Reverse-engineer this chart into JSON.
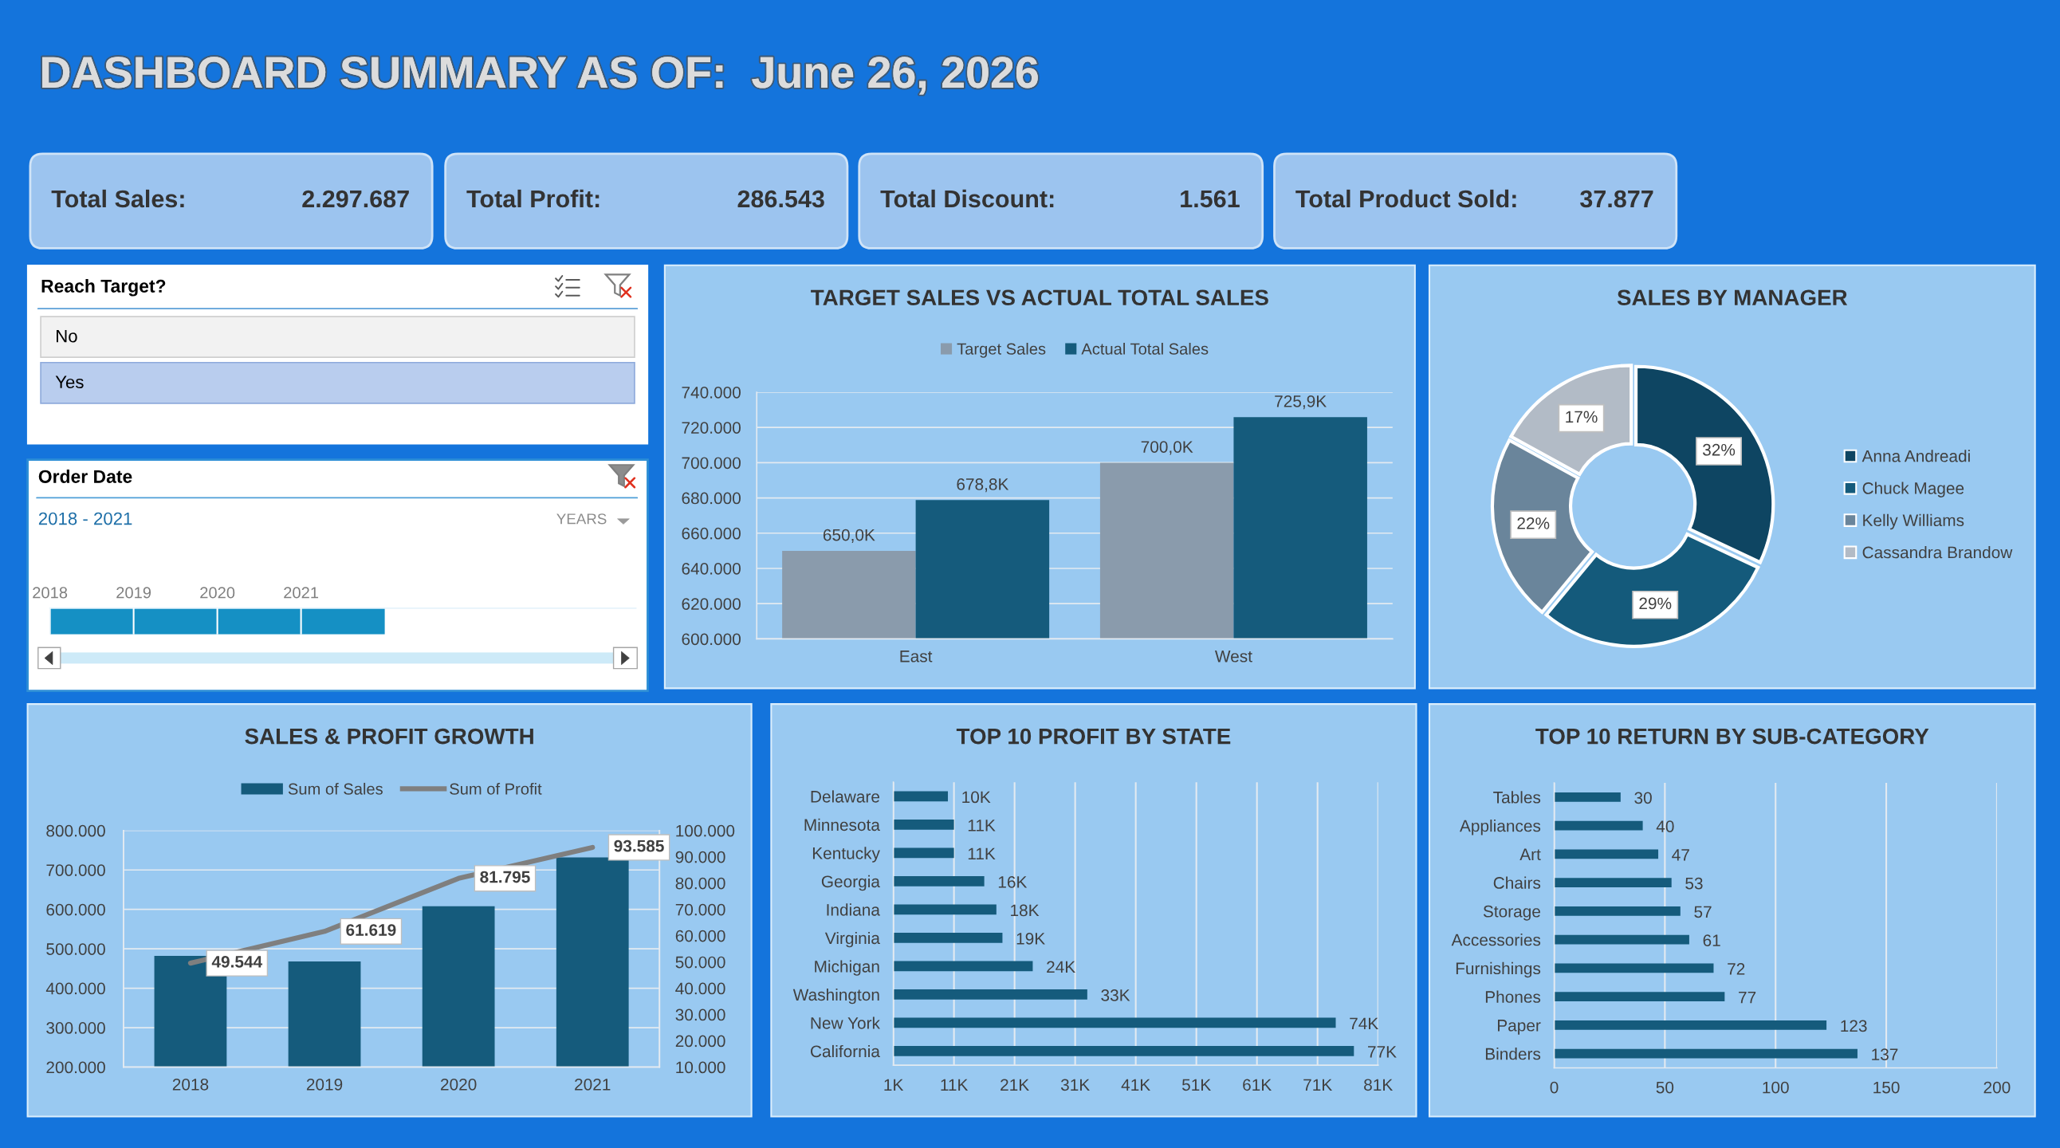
{
  "chart_data": [
    {
      "type": "other",
      "title": "DASHBOARD SUMMARY AS OF:  June 26, 2026"
    },
    {
      "type": "other",
      "title": "Total Sales:",
      "annotations": [
        "2.297.687"
      ]
    },
    {
      "type": "other",
      "title": "Total Profit:",
      "annotations": [
        "286.543"
      ]
    },
    {
      "type": "other",
      "title": "Total Discount:",
      "annotations": [
        "1.561"
      ]
    },
    {
      "type": "other",
      "title": "Total Product Sold:",
      "annotations": [
        "37.877"
      ]
    },
    {
      "type": "other",
      "title": "Reach Target?",
      "annotations": [
        "No",
        "Yes"
      ]
    },
    {
      "type": "bar",
      "orientation": "horizontal",
      "title": "Order Date",
      "annotations": [
        "2018 - 2021",
        "YEARS"
      ],
      "categories": [
        null
      ],
      "base": [
        2018
      ],
      "values": [
        4
      ],
      "color": "#1590c4",
      "xlim": [
        2018,
        2025
      ],
      "xticks": [
        2018,
        2019,
        2020,
        2021
      ],
      "grid": "x"
    },
    {
      "type": "bar",
      "title": "TARGET SALES VS ACTUAL TOTAL SALES",
      "categories": [
        "East",
        "West"
      ],
      "series": [
        {
          "name": "Target Sales",
          "color": "#8a9bac",
          "values": [
            650000,
            700000
          ],
          "value_labels": [
            "650,0K",
            "700,0K"
          ]
        },
        {
          "name": "Actual Total Sales",
          "color": "#155b7c",
          "values": [
            678800,
            725900
          ],
          "value_labels": [
            "678,8K",
            "725,9K"
          ]
        }
      ],
      "ylim": [
        600000,
        740000
      ],
      "yticks": [
        {
          "value": 600000,
          "label": "600.000"
        },
        {
          "value": 620000,
          "label": "620.000"
        },
        {
          "value": 640000,
          "label": "640.000"
        },
        {
          "value": 660000,
          "label": "660.000"
        },
        {
          "value": 680000,
          "label": "680.000"
        },
        {
          "value": 700000,
          "label": "700.000"
        },
        {
          "value": 720000,
          "label": "720.000"
        },
        {
          "value": 740000,
          "label": "740.000"
        }
      ],
      "grid": "y",
      "legend": "top"
    },
    {
      "type": "donut",
      "title": "SALES BY MANAGER",
      "categories": [
        "Anna Andreadi",
        "Chuck Magee",
        "Kelly Williams",
        "Cassandra Brandow"
      ],
      "values": [
        32,
        29,
        22,
        17
      ],
      "colors": [
        "#0e4562",
        "#145a7b",
        "#6a859b",
        "#b2bbc6"
      ],
      "value_labels": [
        "32%",
        "29%",
        "22%",
        "17%"
      ],
      "legend": "right"
    },
    {
      "type": "bar",
      "title": "SALES & PROFIT GROWTH",
      "categories": [
        "2018",
        "2019",
        "2020",
        "2021"
      ],
      "series": [
        {
          "name": "Sum of Sales",
          "color": "#155b7c",
          "values": [
            482000,
            468000,
            608000,
            732000
          ]
        },
        {
          "name": "Sum of Profit",
          "type": "line",
          "axis": "y2",
          "color": "#7f7f7f",
          "values": [
            49544,
            61619,
            81795,
            93585
          ],
          "value_labels": [
            "49.544",
            "61.619",
            "81.795",
            "93.585"
          ]
        }
      ],
      "ylim": [
        200000,
        800000
      ],
      "yticks": [
        {
          "value": 200000,
          "label": "200.000"
        },
        {
          "value": 300000,
          "label": "300.000"
        },
        {
          "value": 400000,
          "label": "400.000"
        },
        {
          "value": 500000,
          "label": "500.000"
        },
        {
          "value": 600000,
          "label": "600.000"
        },
        {
          "value": 700000,
          "label": "700.000"
        },
        {
          "value": 800000,
          "label": "800.000"
        }
      ],
      "y2lim": [
        10000,
        100000
      ],
      "y2ticks": [
        {
          "value": 10000,
          "label": "10.000"
        },
        {
          "value": 20000,
          "label": "20.000"
        },
        {
          "value": 30000,
          "label": "30.000"
        },
        {
          "value": 40000,
          "label": "40.000"
        },
        {
          "value": 50000,
          "label": "50.000"
        },
        {
          "value": 60000,
          "label": "60.000"
        },
        {
          "value": 70000,
          "label": "70.000"
        },
        {
          "value": 80000,
          "label": "80.000"
        },
        {
          "value": 90000,
          "label": "90.000"
        },
        {
          "value": 100000,
          "label": "100.000"
        }
      ],
      "grid": "y",
      "legend": "top"
    },
    {
      "type": "bar",
      "orientation": "horizontal",
      "title": "TOP 10 PROFIT BY STATE",
      "categories": [
        "Delaware",
        "Minnesota",
        "Kentucky",
        "Georgia",
        "Indiana",
        "Virginia",
        "Michigan",
        "Washington",
        "New York",
        "California"
      ],
      "values": [
        10000,
        11000,
        11000,
        16000,
        18000,
        19000,
        24000,
        33000,
        74000,
        77000
      ],
      "value_labels": [
        "10K",
        "11K",
        "11K",
        "16K",
        "18K",
        "19K",
        "24K",
        "33K",
        "74K",
        "77K"
      ],
      "color": "#155b7c",
      "xlim": [
        1000,
        81000
      ],
      "xticks": [
        {
          "value": 1000,
          "label": "1K"
        },
        {
          "value": 11000,
          "label": "11K"
        },
        {
          "value": 21000,
          "label": "21K"
        },
        {
          "value": 31000,
          "label": "31K"
        },
        {
          "value": 41000,
          "label": "41K"
        },
        {
          "value": 51000,
          "label": "51K"
        },
        {
          "value": 61000,
          "label": "61K"
        },
        {
          "value": 71000,
          "label": "71K"
        },
        {
          "value": 81000,
          "label": "81K"
        }
      ],
      "grid": "x"
    },
    {
      "type": "bar",
      "orientation": "horizontal",
      "title": "TOP 10 RETURN BY SUB-CATEGORY",
      "categories": [
        "Tables",
        "Appliances",
        "Art",
        "Chairs",
        "Storage",
        "Accessories",
        "Furnishings",
        "Phones",
        "Paper",
        "Binders"
      ],
      "values": [
        30,
        40,
        47,
        53,
        57,
        61,
        72,
        77,
        123,
        137
      ],
      "data_labels": true,
      "color": "#155b7c",
      "xlim": [
        0,
        200
      ],
      "xticks": [
        0,
        50,
        100,
        150,
        200
      ],
      "grid": "x"
    }
  ]
}
